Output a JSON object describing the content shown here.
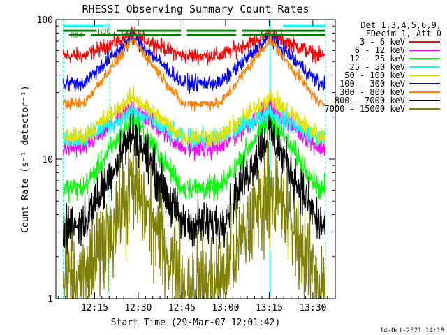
{
  "chart_data": {
    "type": "line",
    "title": "RHESSI Observing Summary Count Rates",
    "xlabel": "Start Time (29-Mar-07 12:01:42)",
    "ylabel": "Count Rate (s⁻¹ detector⁻¹)",
    "yscale": "log",
    "ylim": [
      1,
      100
    ],
    "xlim_minutes": [
      0,
      96
    ],
    "x_tick_labels": [
      {
        "t": 13.3,
        "label": "12:15"
      },
      {
        "t": 28.3,
        "label": "12:30"
      },
      {
        "t": 43.3,
        "label": "12:45"
      },
      {
        "t": 58.3,
        "label": "13:00"
      },
      {
        "t": 73.3,
        "label": "13:15"
      },
      {
        "t": 88.3,
        "label": "13:30"
      }
    ],
    "y_tick_labels": [
      {
        "v": 100,
        "label": "100"
      },
      {
        "v": 10,
        "label": "10"
      },
      {
        "v": 1,
        "label": "1"
      }
    ],
    "legend": {
      "placement": "right",
      "header": [
        "Det 1,3,4,5,6,9,",
        "FDecim 1, Att 0"
      ]
    },
    "series": [
      {
        "name": "3 - 6 keV",
        "color": "#ff0000",
        "base": 55,
        "peak": 78,
        "noise": 0.04
      },
      {
        "name": "6 - 12 keV",
        "color": "#ff00ff",
        "base": 12,
        "peak": 24,
        "noise": 0.05
      },
      {
        "name": "12 - 25 keV",
        "color": "#00ff00",
        "base": 6.2,
        "peak": 20,
        "noise": 0.06
      },
      {
        "name": "25 - 50 keV",
        "color": "#00ffff",
        "base": 14,
        "peak": 22,
        "noise": 0.05
      },
      {
        "name": "50 - 100 keV",
        "color": "#e0e000",
        "base": 14.5,
        "peak": 28,
        "noise": 0.05
      },
      {
        "name": "100 - 300 keV",
        "color": "#0000ff",
        "base": 35,
        "peak": 75,
        "noise": 0.04
      },
      {
        "name": "300 - 800 keV",
        "color": "#ff8000",
        "base": 25,
        "peak": 72,
        "noise": 0.03
      },
      {
        "name": "800 - 7000 keV",
        "color": "#000000",
        "base": 3.4,
        "peak": 16,
        "noise": 0.12
      },
      {
        "name": "7000 - 15000 keV",
        "color": "#808000",
        "base": 1.3,
        "peak": 6.5,
        "noise": 0.25
      }
    ],
    "flags": [
      {
        "name": "N",
        "color": "#00ffff",
        "value": 90
      },
      {
        "name": "RD0",
        "color": "#008000",
        "value": 83
      },
      {
        "name": "RD4",
        "color": "#008000",
        "value": 78
      }
    ],
    "peaks_minutes": [
      26.5,
      73.5
    ],
    "gaps_minutes": [
      [
        0,
        2.5
      ],
      [
        44.8,
        45.2
      ],
      [
        60.3,
        60.7
      ],
      [
        92.6,
        96
      ]
    ],
    "footer_timestamp": "14-Oct-2021 14:18"
  }
}
